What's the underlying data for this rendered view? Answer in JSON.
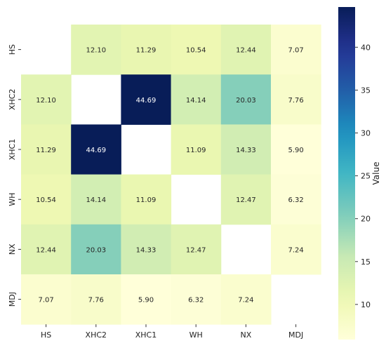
{
  "chart_data": {
    "type": "heatmap",
    "x_categories": [
      "HS",
      "XHC2",
      "XHC1",
      "WH",
      "NX",
      "MDJ"
    ],
    "y_categories": [
      "HS",
      "XHC2",
      "XHC1",
      "WH",
      "NX",
      "MDJ"
    ],
    "values": [
      [
        null,
        12.1,
        11.29,
        10.54,
        12.44,
        7.07
      ],
      [
        12.1,
        null,
        44.69,
        14.14,
        20.03,
        7.76
      ],
      [
        11.29,
        44.69,
        null,
        11.09,
        14.33,
        5.9
      ],
      [
        10.54,
        14.14,
        11.09,
        null,
        12.47,
        6.32
      ],
      [
        12.44,
        20.03,
        14.33,
        12.47,
        null,
        7.24
      ],
      [
        7.07,
        7.76,
        5.9,
        6.32,
        7.24,
        null
      ]
    ],
    "value_format_decimals": 2,
    "colormap": "YlGnBu",
    "color_range": [
      5.9,
      44.69
    ],
    "colorbar": {
      "label": "Value",
      "ticks": [
        10,
        15,
        20,
        25,
        30,
        35,
        40
      ]
    }
  }
}
